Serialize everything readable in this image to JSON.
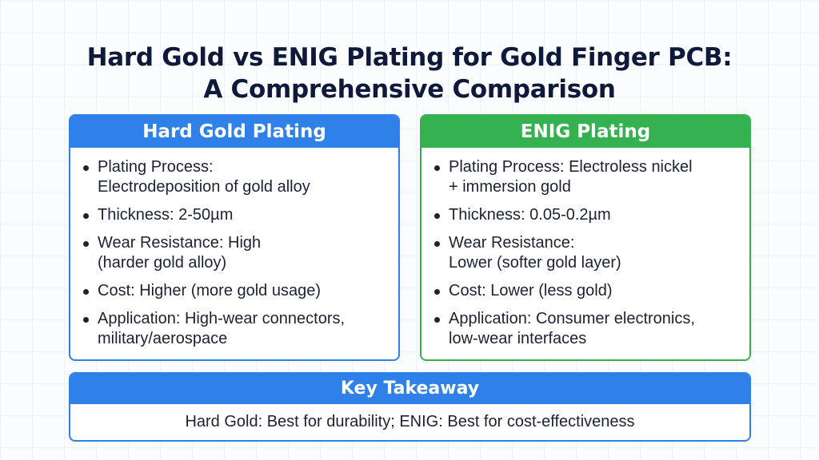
{
  "title": {
    "line1": "Hard Gold vs ENIG Plating for Gold Finger PCB:",
    "line2": "A Comprehensive Comparison"
  },
  "hard_gold": {
    "heading": "Hard Gold Plating",
    "color": "#2f80e8",
    "items": [
      {
        "lines": [
          "Plating Process:",
          "Electrodeposition of gold alloy"
        ]
      },
      {
        "lines": [
          "Thickness: 2-50µm"
        ]
      },
      {
        "lines": [
          "Wear Resistance: High",
          "(harder gold alloy)"
        ]
      },
      {
        "lines": [
          "Cost: Higher (more gold usage)"
        ]
      },
      {
        "lines": [
          "Application: High-wear connectors,",
          "military/aerospace"
        ]
      }
    ]
  },
  "enig": {
    "heading": "ENIG Plating",
    "color": "#35b14f",
    "items": [
      {
        "lines": [
          "Plating Process: Electroless nickel",
          "+ immersion gold"
        ]
      },
      {
        "lines": [
          "Thickness: 0.05-0.2µm"
        ]
      },
      {
        "lines": [
          "Wear Resistance:",
          "Lower (softer gold layer)"
        ]
      },
      {
        "lines": [
          "Cost: Lower (less gold)"
        ]
      },
      {
        "lines": [
          "Application: Consumer electronics,",
          "low-wear interfaces"
        ]
      }
    ]
  },
  "takeaway": {
    "heading": "Key Takeaway",
    "text": "Hard Gold: Best for durability; ENIG: Best for cost-effectiveness"
  }
}
